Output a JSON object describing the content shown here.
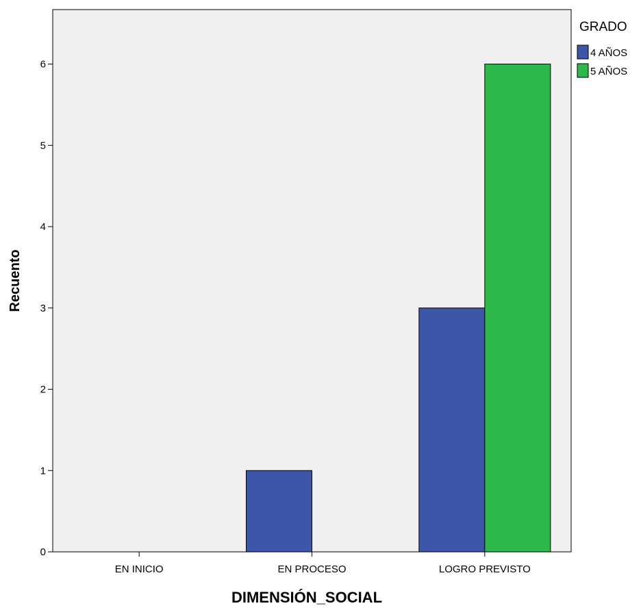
{
  "chart_data": {
    "type": "bar",
    "categories": [
      "EN INICIO",
      "EN PROCESO",
      "LOGRO PREVISTO"
    ],
    "series": [
      {
        "name": "4 AÑOS",
        "values": [
          0,
          1,
          3
        ],
        "color": "#3d56a8"
      },
      {
        "name": "5 AÑOS",
        "values": [
          0,
          0,
          6
        ],
        "color": "#2db94a"
      }
    ],
    "title": "",
    "xlabel": "DIMENSIÓN_SOCIAL",
    "ylabel": "Recuento",
    "ylim": [
      0,
      6.67
    ],
    "yticks": [
      0,
      1,
      2,
      3,
      4,
      5,
      6
    ],
    "legend": {
      "title": "GRADO",
      "position": "right"
    },
    "grid": false,
    "plot_background": "#f0f0f0"
  }
}
